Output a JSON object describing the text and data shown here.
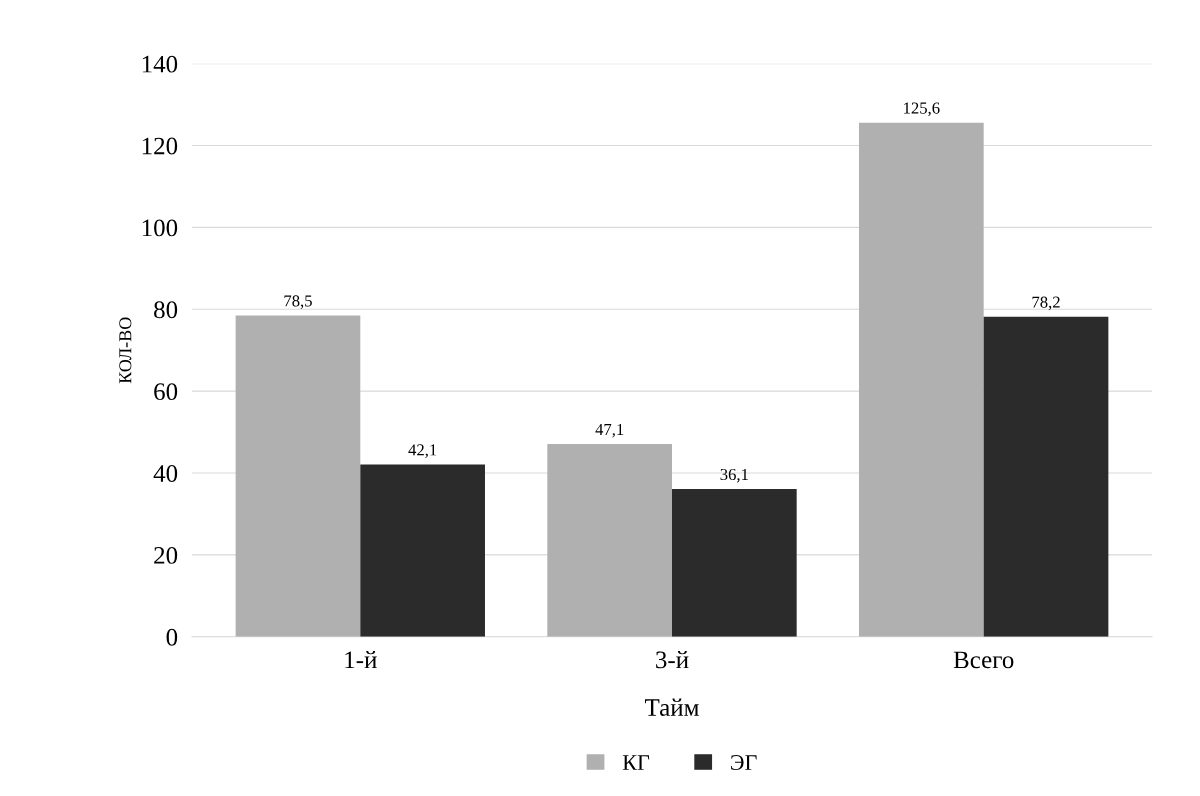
{
  "chart_data": {
    "type": "bar",
    "categories": [
      "1-й",
      "3-й",
      "Всего"
    ],
    "xlabel": "Тайм",
    "ylabel": "КОЛ-ВО",
    "series": [
      {
        "name": "КГ",
        "color": "#b0b0b0",
        "values": [
          78.5,
          47.1,
          125.6
        ]
      },
      {
        "name": "ЭГ",
        "color": "#2b2b2b",
        "values": [
          42.1,
          36.1,
          78.2
        ]
      }
    ],
    "value_labels": [
      [
        "78,5",
        "47,1",
        "125,6"
      ],
      [
        "42,1",
        "36,1",
        "78,2"
      ]
    ],
    "ylim": [
      0,
      140
    ],
    "yticks": [
      0,
      20,
      40,
      60,
      80,
      100,
      120,
      140
    ],
    "grid": "y",
    "legend": "bottom"
  }
}
